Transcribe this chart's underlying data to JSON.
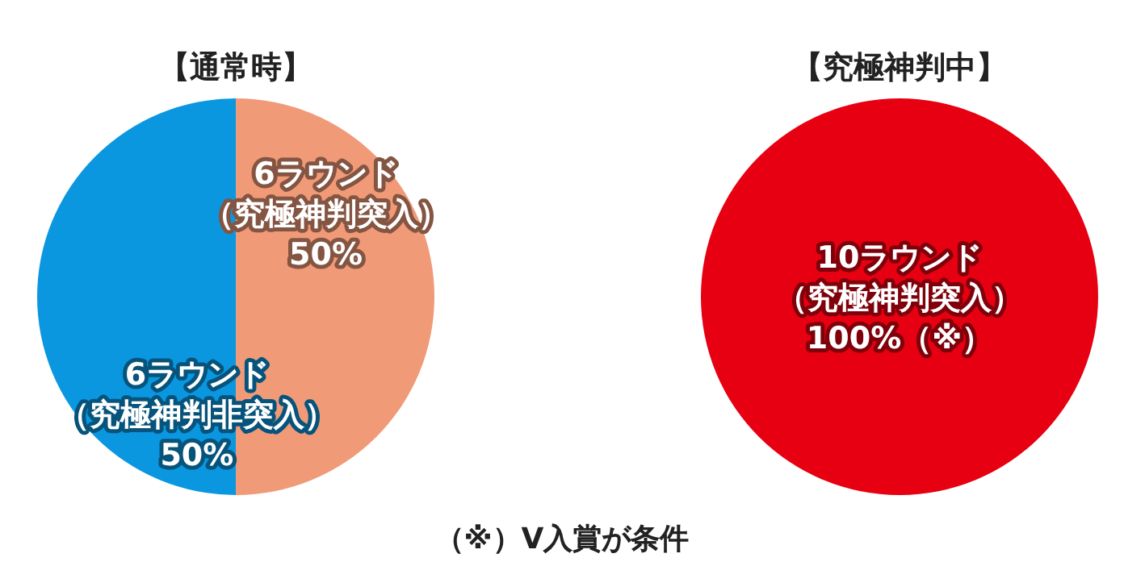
{
  "chart_data": [
    {
      "type": "pie",
      "title": "【通常時】",
      "categories": [
        "6ラウンド（究極神判突入）",
        "6ラウンド（究極神判非突入）"
      ],
      "values": [
        50,
        50
      ],
      "colors": [
        "#f09a78",
        "#0a97e0"
      ],
      "value_labels": [
        "50%",
        "50%"
      ]
    },
    {
      "type": "pie",
      "title": "【究極神判中】",
      "categories": [
        "10ラウンド（究極神判突入）"
      ],
      "values": [
        100
      ],
      "colors": [
        "#e60012"
      ],
      "value_labels": [
        "100%（※）"
      ],
      "annotations": [
        "（※）V入賞が条件"
      ]
    }
  ]
}
